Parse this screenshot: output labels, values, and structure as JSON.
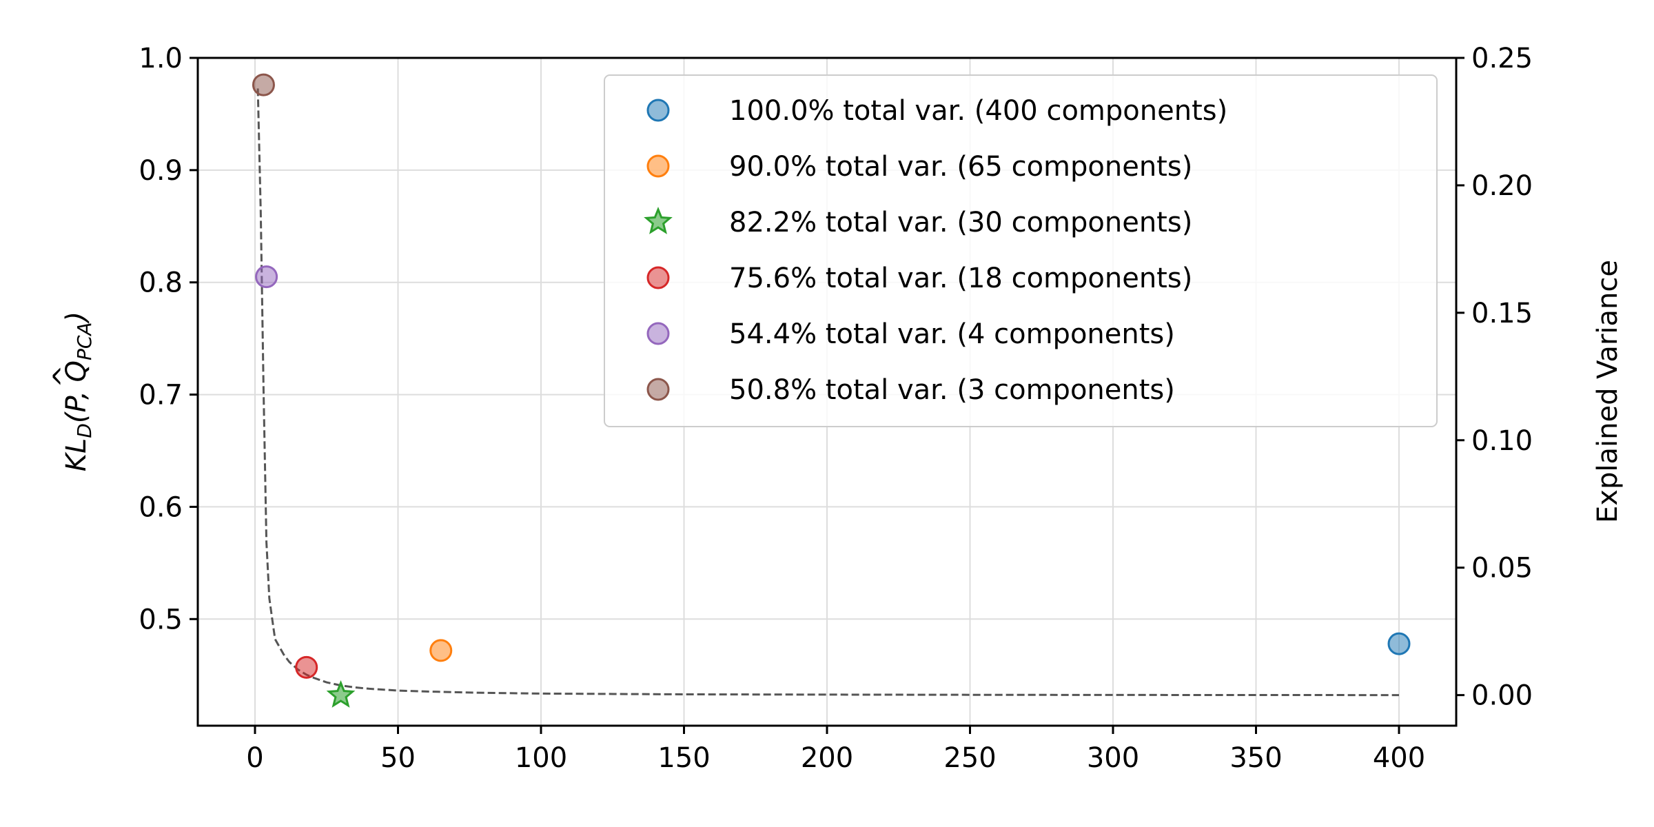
{
  "chart_data": {
    "type": "scatter",
    "xlabel": "",
    "ylabel_left": "KL_D(P, Q̂_PCA)",
    "ylabel_left_parts": {
      "main": "KL",
      "sub1": "D",
      "paren_open": "(P, ",
      "q": "Q",
      "hat": "^",
      "sub2": "PCA",
      "paren_close": ")"
    },
    "ylabel_right": "Explained Variance",
    "xlim": [
      -20,
      420
    ],
    "ylim_left": [
      0.405,
      1.0
    ],
    "ylim_right": [
      -0.012,
      0.25
    ],
    "xticks": [
      0,
      50,
      100,
      150,
      200,
      250,
      300,
      350,
      400
    ],
    "yticks_left": [
      0.5,
      0.6,
      0.7,
      0.8,
      0.9,
      1.0
    ],
    "yticks_left_labels": [
      "0.5",
      "0.6",
      "0.7",
      "0.8",
      "0.9",
      "1.0"
    ],
    "yticks_right": [
      0.0,
      0.05,
      0.1,
      0.15,
      0.2,
      0.25
    ],
    "yticks_right_labels": [
      "0.00",
      "0.05",
      "0.10",
      "0.15",
      "0.20",
      "0.25"
    ],
    "grid": true,
    "legend_position": "top-right",
    "series": [
      {
        "name": "100.0% total var. (400 components)",
        "x": 400,
        "y": 0.478,
        "marker": "circle",
        "color": "#1f77b4"
      },
      {
        "name": "90.0% total var. (65 components)",
        "x": 65,
        "y": 0.472,
        "marker": "circle",
        "color": "#ff7f0e"
      },
      {
        "name": "82.2% total var. (30 components)",
        "x": 30,
        "y": 0.432,
        "marker": "star",
        "color": "#2ca02c"
      },
      {
        "name": "75.6% total var. (18 components)",
        "x": 18,
        "y": 0.457,
        "marker": "circle",
        "color": "#d62728"
      },
      {
        "name": "54.4% total var. (4 components)",
        "x": 4,
        "y": 0.805,
        "marker": "circle",
        "color": "#9467bd"
      },
      {
        "name": "50.8% total var. (3 components)",
        "x": 3,
        "y": 0.976,
        "marker": "circle",
        "color": "#8c564b"
      }
    ],
    "explained_variance_curve": {
      "style": "dashed",
      "color": "#555555",
      "x": [
        1,
        2,
        3,
        4,
        5,
        6,
        7,
        8,
        10,
        12,
        15,
        18,
        20,
        25,
        30,
        35,
        40,
        50,
        60,
        80,
        100,
        150,
        200,
        250,
        300,
        350,
        400
      ],
      "y": [
        0.238,
        0.19,
        0.12,
        0.06,
        0.038,
        0.03,
        0.022,
        0.02,
        0.016,
        0.013,
        0.01,
        0.008,
        0.007,
        0.005,
        0.0038,
        0.003,
        0.0025,
        0.0018,
        0.0014,
        0.0009,
        0.0006,
        0.0003,
        0.0002,
        0.00012,
        7e-05,
        3e-05,
        0.0
      ]
    }
  }
}
